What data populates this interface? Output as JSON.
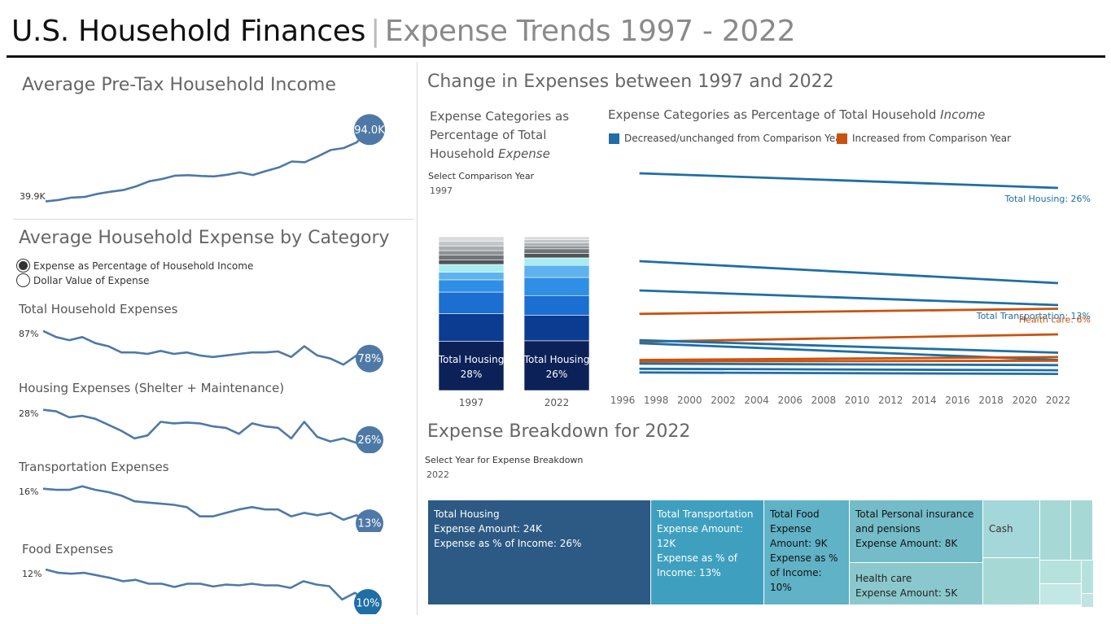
{
  "header": {
    "title": "U.S. Household Finances",
    "separator": "|",
    "subtitle": "Expense Trends 1997 - 2022"
  },
  "left": {
    "income_title": "Average Pre-Tax Household Income",
    "expense_title": "Average Household Expense by Category",
    "radio_options": [
      {
        "label": "Expense as Percentage of Household Income",
        "selected": true
      },
      {
        "label": "Dollar Value of Expense",
        "selected": false
      }
    ]
  },
  "right": {
    "change_title": "Change in Expenses between 1997 and 2022",
    "stack_title_lines": [
      "Expense Categories as",
      "Percentage of Total",
      "Household "
    ],
    "stack_title_italic": "Expense",
    "slope_title": "Expense Categories as Percentage of Total Household ",
    "slope_title_italic": "Income",
    "legend": [
      {
        "label": "Decreased/unchanged from Comparison Year",
        "color": "#1f6ea6"
      },
      {
        "label": "Increased from Comparison Year",
        "color": "#c8530f"
      }
    ],
    "comparison_label": "Select Comparison Year",
    "comparison_value": "1997",
    "breakdown_title": "Expense Breakdown for 2022",
    "breakdown_label": "Select Year for Expense Breakdown",
    "breakdown_value": "2022"
  },
  "chart_data": [
    {
      "id": "income",
      "type": "line",
      "title": "Average Pre-Tax Household Income",
      "x": [
        1997,
        1998,
        1999,
        2000,
        2001,
        2002,
        2003,
        2004,
        2005,
        2006,
        2007,
        2008,
        2009,
        2010,
        2011,
        2012,
        2013,
        2014,
        2015,
        2016,
        2017,
        2018,
        2019,
        2020,
        2021,
        2022
      ],
      "values": [
        39.9,
        41.0,
        42.8,
        43.3,
        45.6,
        47.2,
        48.5,
        51.3,
        55.1,
        56.8,
        59.3,
        59.7,
        59.1,
        58.8,
        60.0,
        61.8,
        59.8,
        62.8,
        65.5,
        70.0,
        69.4,
        73.8,
        78.6,
        80.1,
        84.3,
        94.0
      ],
      "unit": "K",
      "start_label": "39.9K",
      "end_label": "94.0K",
      "ylim": [
        36,
        96
      ]
    },
    {
      "id": "total",
      "type": "line",
      "title": "Total Household Expenses",
      "x": [
        1997,
        1998,
        1999,
        2000,
        2001,
        2002,
        2003,
        2004,
        2005,
        2006,
        2007,
        2008,
        2009,
        2010,
        2011,
        2012,
        2013,
        2014,
        2015,
        2016,
        2017,
        2018,
        2019,
        2020,
        2021,
        2022
      ],
      "values": [
        87,
        85,
        84,
        85,
        83,
        82,
        80,
        80,
        79.5,
        80.5,
        79.5,
        80,
        79,
        78.5,
        79,
        79.5,
        80,
        80,
        80.3,
        78.5,
        82,
        79,
        78,
        76,
        79,
        78
      ],
      "start_label": "87%",
      "end_label": "78%",
      "ylim": [
        75,
        88
      ]
    },
    {
      "id": "housing",
      "type": "line",
      "title": "Housing Expenses (Shelter + Maintenance)",
      "x": [
        1997,
        1998,
        1999,
        2000,
        2001,
        2002,
        2003,
        2004,
        2005,
        2006,
        2007,
        2008,
        2009,
        2010,
        2011,
        2012,
        2013,
        2014,
        2015,
        2016,
        2017,
        2018,
        2019,
        2020,
        2021,
        2022
      ],
      "values": [
        28,
        27.9,
        27.5,
        27.6,
        27.4,
        27,
        26.6,
        26.1,
        26.3,
        27.2,
        27.1,
        27.15,
        27.1,
        26.9,
        26.8,
        26.4,
        27.1,
        26.9,
        26.8,
        26.1,
        27.2,
        26.2,
        25.9,
        26.1,
        25.8,
        26
      ],
      "start_label": "28%",
      "end_label": "26%",
      "ylim": [
        25.5,
        28.2
      ]
    },
    {
      "id": "transport",
      "type": "line",
      "title": "Transportation Expenses",
      "x": [
        1997,
        1998,
        1999,
        2000,
        2001,
        2002,
        2003,
        2004,
        2005,
        2006,
        2007,
        2008,
        2009,
        2010,
        2011,
        2012,
        2013,
        2014,
        2015,
        2016,
        2017,
        2018,
        2019,
        2020,
        2021,
        2022
      ],
      "values": [
        16,
        15.9,
        15.9,
        16.2,
        15.9,
        15.7,
        15.4,
        14.9,
        14.8,
        14.7,
        14.6,
        14.4,
        13.6,
        13.6,
        13.9,
        14.2,
        14.4,
        14.2,
        14.2,
        13.6,
        13.9,
        13.7,
        13.9,
        13.3,
        13.7,
        13
      ],
      "start_label": "16%",
      "end_label": "13%",
      "ylim": [
        12.8,
        16.4
      ]
    },
    {
      "id": "food",
      "type": "line",
      "title": "Food Expenses",
      "x": [
        1997,
        1998,
        1999,
        2000,
        2001,
        2002,
        2003,
        2004,
        2005,
        2006,
        2007,
        2008,
        2009,
        2010,
        2011,
        2012,
        2013,
        2014,
        2015,
        2016,
        2017,
        2018,
        2019,
        2020,
        2021,
        2022
      ],
      "values": [
        12,
        11.8,
        11.75,
        11.8,
        11.65,
        11.5,
        11.3,
        11.38,
        11.15,
        11.15,
        10.95,
        11.15,
        11.15,
        10.98,
        11.1,
        11.05,
        11.15,
        11.05,
        11.05,
        10.9,
        11.3,
        11.1,
        11.0,
        10.2,
        10.6,
        10
      ],
      "start_label": "12%",
      "end_label": "10%",
      "ylim": [
        10,
        12.1
      ]
    },
    {
      "id": "stack",
      "type": "bar",
      "title": "Expense Categories as Percentage of Total Household Expense",
      "categories": [
        "1997",
        "2022"
      ],
      "bar_labels": [
        {
          "name": "Total Housing",
          "value": "28%"
        },
        {
          "name": "Total Housing",
          "value": "26%"
        }
      ],
      "segments_1997": [
        {
          "v": 32,
          "c": "#0b2158"
        },
        {
          "v": 18,
          "c": "#0b3c91"
        },
        {
          "v": 14,
          "c": "#1a6fd0"
        },
        {
          "v": 8,
          "c": "#2f8fe6"
        },
        {
          "v": 5,
          "c": "#5eb2ee"
        },
        {
          "v": 5,
          "c": "#a8ecf2"
        },
        {
          "v": 3,
          "c": "#4f5458"
        },
        {
          "v": 3,
          "c": "#6f7478"
        },
        {
          "v": 3,
          "c": "#8e9396"
        },
        {
          "v": 3,
          "c": "#a9adb0"
        },
        {
          "v": 3,
          "c": "#c3c6c8"
        },
        {
          "v": 3,
          "c": "#d8dadb"
        }
      ],
      "segments_2022": [
        {
          "v": 33,
          "c": "#0b2158"
        },
        {
          "v": 17,
          "c": "#0b3c91"
        },
        {
          "v": 13,
          "c": "#1a6fd0"
        },
        {
          "v": 12,
          "c": "#2f8fe6"
        },
        {
          "v": 8,
          "c": "#5eb2ee"
        },
        {
          "v": 5,
          "c": "#a8ecf2"
        },
        {
          "v": 3,
          "c": "#4f5458"
        },
        {
          "v": 3,
          "c": "#6f7478"
        },
        {
          "v": 2,
          "c": "#8e9396"
        },
        {
          "v": 2,
          "c": "#a9adb0"
        },
        {
          "v": 2,
          "c": "#c3c6c8"
        },
        {
          "v": 2,
          "c": "#d8dadb"
        }
      ]
    },
    {
      "id": "slope",
      "type": "line",
      "title": "Expense Categories as Percentage of Total Household Income",
      "x_ticks": [
        "1996",
        "1998",
        "2000",
        "2002",
        "2004",
        "2006",
        "2008",
        "2010",
        "2012",
        "2014",
        "2016",
        "2018",
        "2020",
        "2022"
      ],
      "xlim": [
        1996,
        2022
      ],
      "ylim": [
        0,
        30
      ],
      "series": [
        {
          "y1997": 28.0,
          "y2022": 26.0,
          "color": "#1f6ea6",
          "label": "Total Housing: 26%"
        },
        {
          "y1997": 16.0,
          "y2022": 13.0,
          "color": "#1f6ea6",
          "label": ""
        },
        {
          "y1997": 12.0,
          "y2022": 10.0,
          "color": "#1f6ea6",
          "label": "Total Transportation: 13%"
        },
        {
          "y1997": 8.8,
          "y2022": 9.5,
          "color": "#c8530f",
          "label": "Health care: 6%"
        },
        {
          "y1997": 5.0,
          "y2022": 6.0,
          "color": "#c8530f",
          "label": ""
        },
        {
          "y1997": 5.2,
          "y2022": 3.5,
          "color": "#1f6ea6",
          "label": ""
        },
        {
          "y1997": 4.8,
          "y2022": 2.5,
          "color": "#1f6ea6",
          "label": ""
        },
        {
          "y1997": 2.5,
          "y2022": 2.9,
          "color": "#c8530f",
          "label": ""
        },
        {
          "y1997": 2.3,
          "y2022": 2.4,
          "color": "#c8530f",
          "label": ""
        },
        {
          "y1997": 2.0,
          "y2022": 1.8,
          "color": "#1f6ea6",
          "label": ""
        },
        {
          "y1997": 1.3,
          "y2022": 1.1,
          "color": "#1f6ea6",
          "label": ""
        },
        {
          "y1997": 0.8,
          "y2022": 0.6,
          "color": "#1f6ea6",
          "label": ""
        }
      ]
    },
    {
      "id": "treemap",
      "type": "treemap",
      "title": "Expense Breakdown for 2022",
      "cells": [
        {
          "lines": [
            "Total Housing",
            "Expense Amount: 24K",
            "Expense as % of Income: 26%"
          ],
          "color": "#2c5a85"
        },
        {
          "lines": [
            "Total Transportation",
            "Expense Amount: 12K",
            "Expense as % of Income: 13%"
          ],
          "color": "#3f9fbf"
        },
        {
          "lines": [
            "Total Food Expense",
            "Amount: 9K",
            "Expense as % of Income: 10%"
          ],
          "color": "#60b2c6"
        },
        {
          "lines": [
            "Total Personal insurance and pensions",
            "Expense Amount: 8K"
          ],
          "color": "#74bcc8"
        },
        {
          "lines": [
            "Health care",
            "Expense Amount: 5K"
          ],
          "color": "#8ac8ce"
        },
        {
          "lines": [
            "Cash"
          ],
          "color": "#a4d7d9"
        },
        {
          "lines": [],
          "color": "#a6d9d6"
        },
        {
          "lines": [],
          "color": "#a6d9d6"
        },
        {
          "lines": [],
          "color": "#a6d9d6"
        },
        {
          "lines": [],
          "color": "#b6e2dd"
        },
        {
          "lines": [],
          "color": "#b6e2dd"
        },
        {
          "lines": [],
          "color": "#c3e7e4"
        },
        {
          "lines": [],
          "color": "#bfe4e1"
        },
        {
          "lines": [],
          "color": "#c8ebe7"
        }
      ]
    }
  ]
}
